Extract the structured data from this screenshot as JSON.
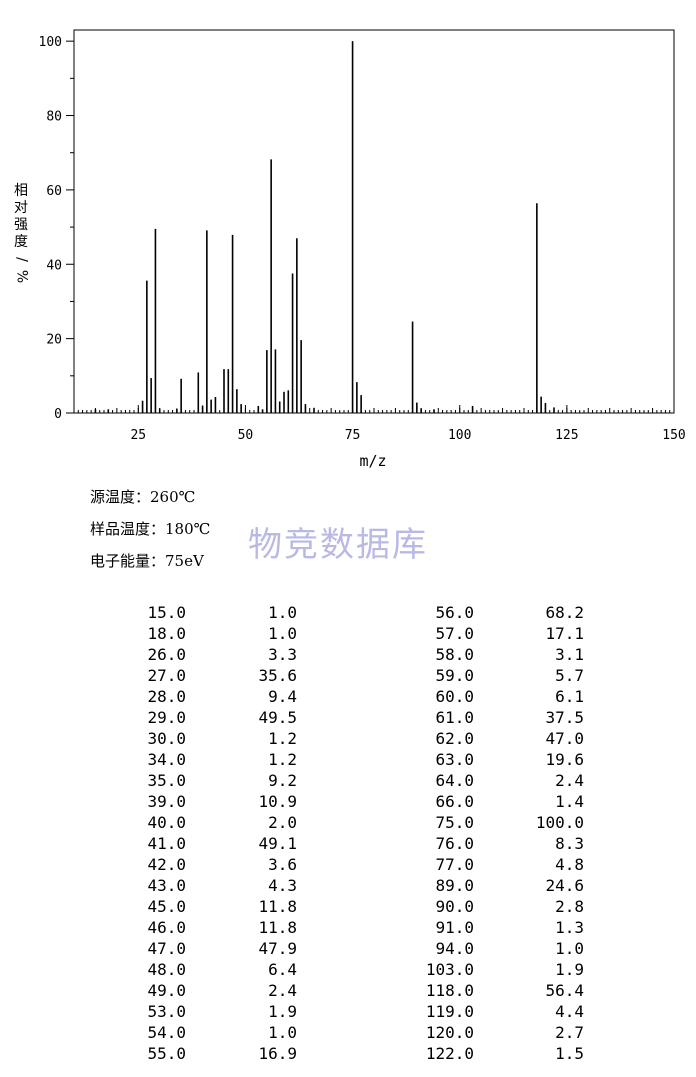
{
  "chart_data": {
    "type": "bar",
    "xlabel": "m/z",
    "ylabel_chars": [
      "相",
      "对",
      "强",
      "度",
      "%"
    ],
    "ylabel_slash": "/",
    "xlim": [
      10,
      150
    ],
    "ylim": [
      0,
      103
    ],
    "x_ticks": [
      25,
      50,
      75,
      100,
      125,
      150
    ],
    "y_ticks": [
      0,
      20,
      40,
      60,
      80,
      100
    ],
    "peaks": [
      {
        "mz": 15.0,
        "intensity": 1.0
      },
      {
        "mz": 18.0,
        "intensity": 1.0
      },
      {
        "mz": 26.0,
        "intensity": 3.3
      },
      {
        "mz": 27.0,
        "intensity": 35.6
      },
      {
        "mz": 28.0,
        "intensity": 9.4
      },
      {
        "mz": 29.0,
        "intensity": 49.5
      },
      {
        "mz": 30.0,
        "intensity": 1.2
      },
      {
        "mz": 34.0,
        "intensity": 1.2
      },
      {
        "mz": 35.0,
        "intensity": 9.2
      },
      {
        "mz": 39.0,
        "intensity": 10.9
      },
      {
        "mz": 40.0,
        "intensity": 2.0
      },
      {
        "mz": 41.0,
        "intensity": 49.1
      },
      {
        "mz": 42.0,
        "intensity": 3.6
      },
      {
        "mz": 43.0,
        "intensity": 4.3
      },
      {
        "mz": 45.0,
        "intensity": 11.8
      },
      {
        "mz": 46.0,
        "intensity": 11.8
      },
      {
        "mz": 47.0,
        "intensity": 47.9
      },
      {
        "mz": 48.0,
        "intensity": 6.4
      },
      {
        "mz": 49.0,
        "intensity": 2.4
      },
      {
        "mz": 53.0,
        "intensity": 1.9
      },
      {
        "mz": 54.0,
        "intensity": 1.0
      },
      {
        "mz": 55.0,
        "intensity": 16.9
      },
      {
        "mz": 56.0,
        "intensity": 68.2
      },
      {
        "mz": 57.0,
        "intensity": 17.1
      },
      {
        "mz": 58.0,
        "intensity": 3.1
      },
      {
        "mz": 59.0,
        "intensity": 5.7
      },
      {
        "mz": 60.0,
        "intensity": 6.1
      },
      {
        "mz": 61.0,
        "intensity": 37.5
      },
      {
        "mz": 62.0,
        "intensity": 47.0
      },
      {
        "mz": 63.0,
        "intensity": 19.6
      },
      {
        "mz": 64.0,
        "intensity": 2.4
      },
      {
        "mz": 66.0,
        "intensity": 1.4
      },
      {
        "mz": 75.0,
        "intensity": 100.0
      },
      {
        "mz": 76.0,
        "intensity": 8.3
      },
      {
        "mz": 77.0,
        "intensity": 4.8
      },
      {
        "mz": 89.0,
        "intensity": 24.6
      },
      {
        "mz": 90.0,
        "intensity": 2.8
      },
      {
        "mz": 91.0,
        "intensity": 1.3
      },
      {
        "mz": 94.0,
        "intensity": 1.0
      },
      {
        "mz": 103.0,
        "intensity": 1.9
      },
      {
        "mz": 118.0,
        "intensity": 56.4
      },
      {
        "mz": 119.0,
        "intensity": 4.4
      },
      {
        "mz": 120.0,
        "intensity": 2.7
      },
      {
        "mz": 122.0,
        "intensity": 1.5
      }
    ],
    "colors": {
      "line": "#000000",
      "background": "#ffffff",
      "watermark": "#b9b9e6"
    }
  },
  "info": {
    "source_temp": "源温度：260℃",
    "sample_temp": "样品温度：180℃",
    "electron_energy": "电子能量：75eV"
  },
  "watermark": "物竞数据库",
  "peak_table": [
    [
      "15.0",
      "1.0",
      "56.0",
      "68.2"
    ],
    [
      "18.0",
      "1.0",
      "57.0",
      "17.1"
    ],
    [
      "26.0",
      "3.3",
      "58.0",
      "3.1"
    ],
    [
      "27.0",
      "35.6",
      "59.0",
      "5.7"
    ],
    [
      "28.0",
      "9.4",
      "60.0",
      "6.1"
    ],
    [
      "29.0",
      "49.5",
      "61.0",
      "37.5"
    ],
    [
      "30.0",
      "1.2",
      "62.0",
      "47.0"
    ],
    [
      "34.0",
      "1.2",
      "63.0",
      "19.6"
    ],
    [
      "35.0",
      "9.2",
      "64.0",
      "2.4"
    ],
    [
      "39.0",
      "10.9",
      "66.0",
      "1.4"
    ],
    [
      "40.0",
      "2.0",
      "75.0",
      "100.0"
    ],
    [
      "41.0",
      "49.1",
      "76.0",
      "8.3"
    ],
    [
      "42.0",
      "3.6",
      "77.0",
      "4.8"
    ],
    [
      "43.0",
      "4.3",
      "89.0",
      "24.6"
    ],
    [
      "45.0",
      "11.8",
      "90.0",
      "2.8"
    ],
    [
      "46.0",
      "11.8",
      "91.0",
      "1.3"
    ],
    [
      "47.0",
      "47.9",
      "94.0",
      "1.0"
    ],
    [
      "48.0",
      "6.4",
      "103.0",
      "1.9"
    ],
    [
      "49.0",
      "2.4",
      "118.0",
      "56.4"
    ],
    [
      "53.0",
      "1.9",
      "119.0",
      "4.4"
    ],
    [
      "54.0",
      "1.0",
      "120.0",
      "2.7"
    ],
    [
      "55.0",
      "16.9",
      "122.0",
      "1.5"
    ]
  ]
}
